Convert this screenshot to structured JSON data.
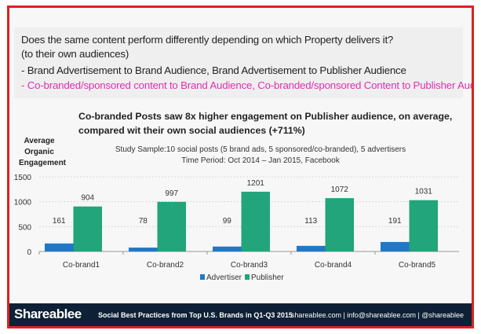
{
  "header": {
    "question": "Does the same content perform differently depending on which Property delivers it?",
    "question_sub": "(to their own audiences)",
    "bullet1": "- Brand Advertisement to Brand Audience, Brand Advertisement to Publisher Audience",
    "bullet2": "- Co-branded/sponsored content to Brand Audience, Co-branded/sponsored Content to Publisher Audience"
  },
  "chart_data": {
    "type": "bar",
    "title_line1": "Co-branded Posts saw 8x higher engagement on Publisher audience, on average,",
    "title_line2": "compared wit their own social audiences (+711%)",
    "subtitle_line1": "Study Sample:10 social posts (5 brand ads, 5 sponsored/co-branded), 5 advertisers",
    "subtitle_line2": "Time Period: Oct 2014 – Jan 2015, Facebook",
    "ylabel": "Average Organic Engagement",
    "ylim": [
      0,
      1500
    ],
    "yticks": [
      "0",
      "500",
      "1000",
      "1500"
    ],
    "grid": true,
    "legend": "bottom",
    "categories": [
      "Co-brand1",
      "Co-brand2",
      "Co-brand3",
      "Co-brand4",
      "Co-brand5"
    ],
    "series": [
      {
        "name": "Advertiser",
        "color": "#1f78c8",
        "values": [
          161,
          78,
          99,
          113,
          191
        ]
      },
      {
        "name": "Publisher",
        "color": "#22a57a",
        "values": [
          904,
          997,
          1201,
          1072,
          1031
        ]
      }
    ]
  },
  "footer": {
    "logo": "Shareablee",
    "tagline": "Social Best Practices from Top U.S. Brands in Q1-Q3 2015",
    "contact": "shareablee.com  |  info@shareablee.com  |  @shareablee"
  },
  "colors": {
    "frame": "#e02020",
    "footer_bg": "#0d2035",
    "highlight": "#e030b0"
  }
}
